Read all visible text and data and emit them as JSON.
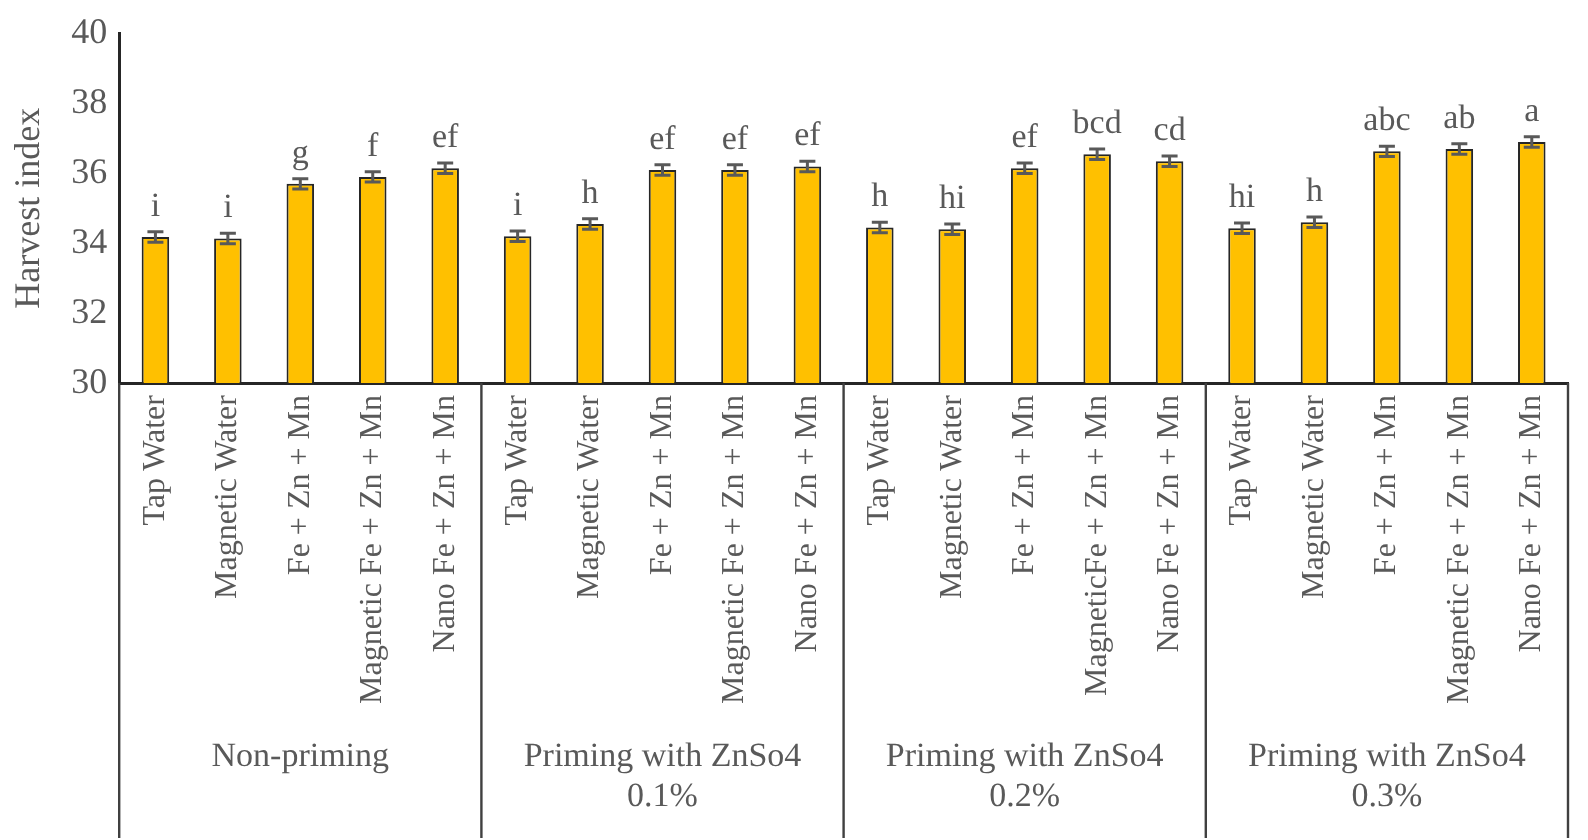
{
  "chart_data": {
    "type": "bar",
    "ylabel": "Harvest index",
    "categories": [
      "Tap Water",
      "Magnetic Water",
      "Fe + Zn + Mn",
      "Magnetic Fe + Zn + Mn",
      "Nano Fe + Zn + Mn",
      "Tap Water",
      "Magnetic Water",
      "Fe + Zn + Mn",
      "Magnetic Fe + Zn + Mn",
      "Nano Fe + Zn + Mn",
      "Tap Water",
      "Magnetic Water",
      "Fe + Zn + Mn",
      "MagneticFe + Zn + Mn",
      "Nano Fe + Zn + Mn",
      "Tap Water",
      "Magnetic Water",
      "Fe + Zn + Mn",
      "Magnetic Fe + Zn + Mn",
      "Nano Fe + Zn + Mn"
    ],
    "values": [
      34.18,
      34.14,
      35.7,
      35.9,
      36.15,
      34.2,
      34.55,
      36.1,
      36.1,
      36.2,
      34.45,
      34.4,
      36.15,
      36.55,
      36.35,
      34.43,
      34.6,
      36.63,
      36.7,
      36.9
    ],
    "errors": [
      0.15,
      0.15,
      0.15,
      0.15,
      0.15,
      0.15,
      0.15,
      0.15,
      0.15,
      0.15,
      0.15,
      0.15,
      0.15,
      0.15,
      0.15,
      0.15,
      0.15,
      0.15,
      0.15,
      0.15
    ],
    "value_labels": [
      "i",
      "i",
      "g",
      "f",
      "ef",
      "i",
      "h",
      "ef",
      "ef",
      "ef",
      "h",
      "hi",
      "ef",
      "bcd",
      "cd",
      "hi",
      "h",
      "abc",
      "ab",
      "a"
    ],
    "color": "#ffc000",
    "ylim": [
      30,
      40
    ],
    "yticks": [
      30,
      32,
      34,
      36,
      38,
      40
    ],
    "grid": false,
    "legend": false,
    "annotations": [
      "Non-priming",
      "Priming with ZnSo4 0.1%",
      "Priming with ZnSo4 0.2%",
      "Priming with ZnSo4 0.3%"
    ]
  }
}
